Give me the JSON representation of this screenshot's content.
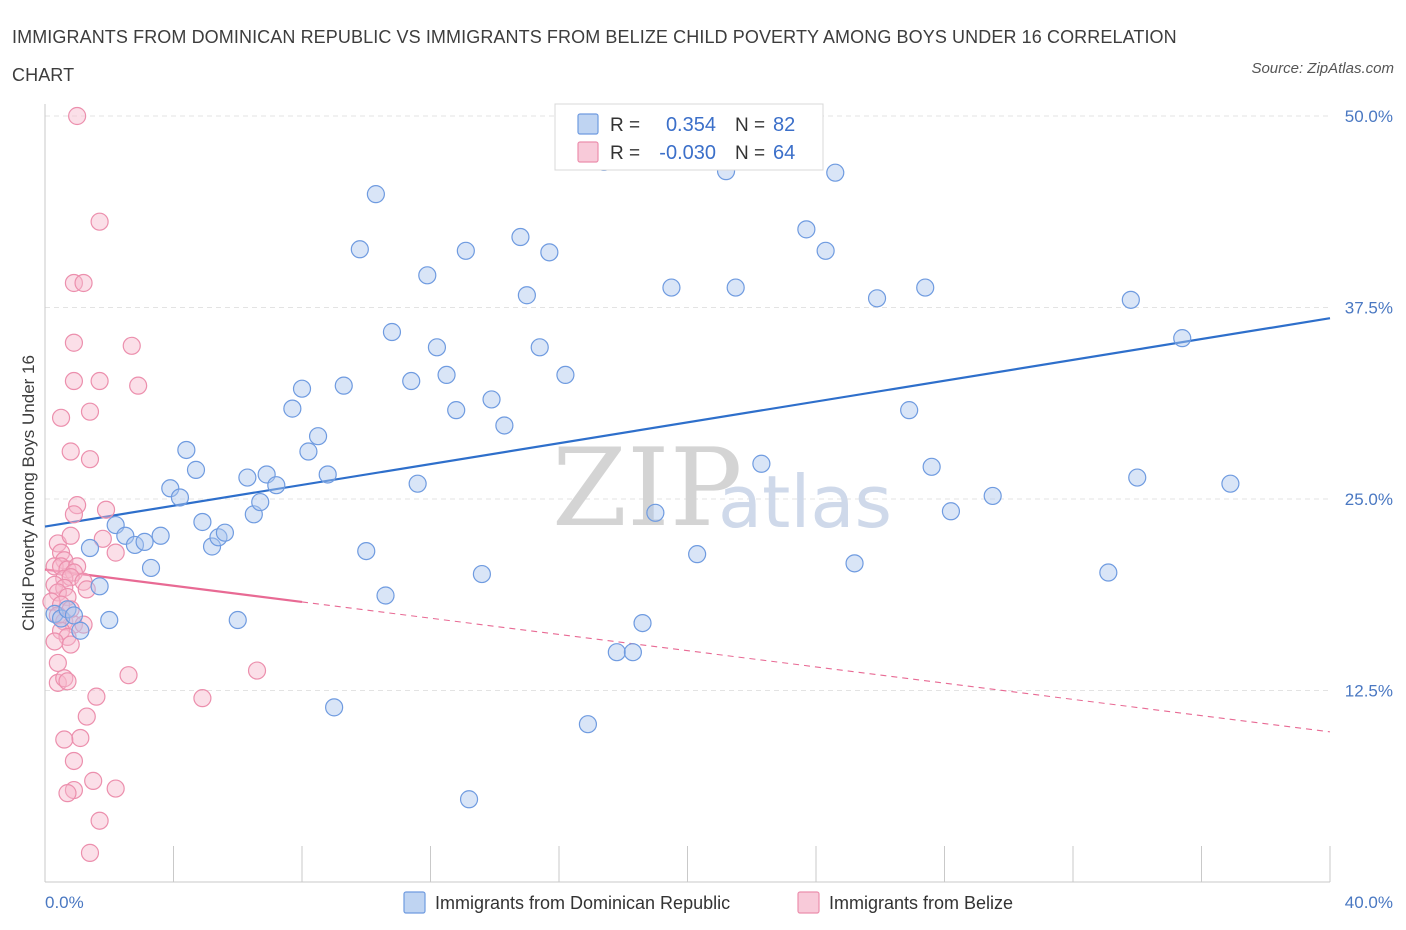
{
  "title": "IMMIGRANTS FROM DOMINICAN REPUBLIC VS IMMIGRANTS FROM BELIZE CHILD POVERTY AMONG BOYS UNDER 16 CORRELATION CHART",
  "source": "Source: ZipAtlas.com",
  "watermark": {
    "part1": "ZIP",
    "part2": "atlas"
  },
  "colors": {
    "blue_fill": "#aac6ee",
    "blue_stroke": "#6f9be0",
    "blue_line": "#2e6fcb",
    "pink_fill": "#f6b8cc",
    "pink_stroke": "#ec8fad",
    "pink_line": "#e86a94",
    "grid": "#e3e3e3",
    "axis_text": "#4a78c2"
  },
  "legend": {
    "r_label": "R =",
    "n_label": "N =",
    "rows": [
      {
        "series": "dominican",
        "r": "0.354",
        "n": "82"
      },
      {
        "series": "belize",
        "r": "-0.030",
        "n": "64"
      }
    ]
  },
  "bottom_legend": [
    {
      "series": "dominican",
      "label": "Immigrants from Dominican Republic"
    },
    {
      "series": "belize",
      "label": "Immigrants from Belize"
    }
  ],
  "chart_data": {
    "type": "scatter",
    "xlabel": "",
    "ylabel": "Child Poverty Among Boys Under 16",
    "xlim": [
      0,
      40
    ],
    "ylim": [
      0,
      50
    ],
    "x_tick_labels": [
      "0.0%",
      "40.0%"
    ],
    "y_ticks": [
      {
        "value": 12.5,
        "label": "12.5%"
      },
      {
        "value": 25.0,
        "label": "25.0%"
      },
      {
        "value": 37.5,
        "label": "37.5%"
      },
      {
        "value": 50.0,
        "label": "50.0%"
      }
    ],
    "series": [
      {
        "name": "Immigrants from Dominican Republic",
        "key": "dominican",
        "r": 0.354,
        "n": 82,
        "trend": {
          "x0": 0,
          "y0": 23.2,
          "x1": 40,
          "y1": 36.8,
          "dashed_from": null
        },
        "points": [
          [
            0.3,
            17.5
          ],
          [
            0.5,
            17.2
          ],
          [
            0.7,
            17.8
          ],
          [
            0.9,
            17.4
          ],
          [
            1.1,
            16.4
          ],
          [
            1.4,
            21.8
          ],
          [
            1.7,
            19.3
          ],
          [
            2.0,
            17.1
          ],
          [
            2.2,
            23.3
          ],
          [
            2.5,
            22.6
          ],
          [
            2.8,
            22.0
          ],
          [
            3.1,
            22.2
          ],
          [
            3.3,
            20.5
          ],
          [
            3.6,
            22.6
          ],
          [
            3.9,
            25.7
          ],
          [
            4.2,
            25.1
          ],
          [
            4.4,
            28.2
          ],
          [
            4.7,
            26.9
          ],
          [
            4.9,
            23.5
          ],
          [
            5.2,
            21.9
          ],
          [
            5.4,
            22.5
          ],
          [
            5.6,
            22.8
          ],
          [
            6.0,
            17.1
          ],
          [
            6.3,
            26.4
          ],
          [
            6.5,
            24.0
          ],
          [
            6.7,
            24.8
          ],
          [
            6.9,
            26.6
          ],
          [
            7.2,
            25.9
          ],
          [
            7.7,
            30.9
          ],
          [
            8.0,
            32.2
          ],
          [
            8.2,
            28.1
          ],
          [
            8.5,
            29.1
          ],
          [
            8.8,
            26.6
          ],
          [
            9.0,
            11.4
          ],
          [
            9.3,
            32.4
          ],
          [
            9.8,
            41.3
          ],
          [
            10.0,
            21.6
          ],
          [
            10.3,
            44.9
          ],
          [
            10.6,
            18.7
          ],
          [
            10.8,
            35.9
          ],
          [
            11.4,
            32.7
          ],
          [
            11.6,
            26.0
          ],
          [
            11.9,
            39.6
          ],
          [
            12.2,
            34.9
          ],
          [
            12.5,
            33.1
          ],
          [
            12.8,
            30.8
          ],
          [
            13.1,
            41.2
          ],
          [
            13.2,
            5.4
          ],
          [
            13.6,
            20.1
          ],
          [
            13.9,
            31.5
          ],
          [
            14.3,
            29.8
          ],
          [
            14.8,
            42.1
          ],
          [
            15.0,
            38.3
          ],
          [
            15.4,
            34.9
          ],
          [
            15.7,
            41.1
          ],
          [
            16.2,
            33.1
          ],
          [
            16.9,
            10.3
          ],
          [
            17.4,
            47.0
          ],
          [
            17.8,
            15.0
          ],
          [
            18.3,
            15.0
          ],
          [
            18.6,
            16.9
          ],
          [
            19.0,
            24.1
          ],
          [
            19.5,
            38.8
          ],
          [
            20.3,
            21.4
          ],
          [
            21.2,
            46.4
          ],
          [
            21.5,
            38.8
          ],
          [
            22.3,
            27.3
          ],
          [
            23.7,
            42.6
          ],
          [
            24.3,
            41.2
          ],
          [
            24.6,
            46.3
          ],
          [
            25.2,
            20.8
          ],
          [
            25.9,
            38.1
          ],
          [
            26.9,
            30.8
          ],
          [
            27.4,
            38.8
          ],
          [
            27.6,
            27.1
          ],
          [
            28.2,
            24.2
          ],
          [
            29.5,
            25.2
          ],
          [
            33.1,
            20.2
          ],
          [
            33.8,
            38.0
          ],
          [
            34.0,
            26.4
          ],
          [
            35.4,
            35.5
          ],
          [
            36.9,
            26.0
          ]
        ]
      },
      {
        "name": "Immigrants from Belize",
        "key": "belize",
        "r": -0.03,
        "n": 64,
        "trend": {
          "x0": 0,
          "y0": 20.4,
          "x1": 40,
          "y1": 9.8,
          "dashed_from": 8.0
        },
        "points": [
          [
            1.0,
            50.0
          ],
          [
            1.7,
            43.1
          ],
          [
            0.9,
            39.1
          ],
          [
            1.2,
            39.1
          ],
          [
            0.9,
            35.2
          ],
          [
            2.7,
            35.0
          ],
          [
            0.9,
            32.7
          ],
          [
            1.7,
            32.7
          ],
          [
            2.9,
            32.4
          ],
          [
            1.4,
            30.7
          ],
          [
            0.5,
            30.3
          ],
          [
            0.8,
            28.1
          ],
          [
            1.4,
            27.6
          ],
          [
            1.0,
            24.6
          ],
          [
            1.9,
            24.3
          ],
          [
            0.9,
            24.0
          ],
          [
            0.4,
            22.1
          ],
          [
            0.8,
            22.6
          ],
          [
            1.8,
            22.4
          ],
          [
            0.5,
            21.5
          ],
          [
            2.2,
            21.5
          ],
          [
            0.6,
            21.0
          ],
          [
            0.3,
            20.6
          ],
          [
            0.5,
            20.6
          ],
          [
            0.7,
            20.4
          ],
          [
            1.0,
            20.6
          ],
          [
            0.9,
            20.2
          ],
          [
            0.6,
            19.8
          ],
          [
            0.8,
            19.9
          ],
          [
            1.2,
            19.6
          ],
          [
            0.3,
            19.4
          ],
          [
            0.6,
            19.2
          ],
          [
            0.4,
            18.9
          ],
          [
            0.7,
            18.6
          ],
          [
            1.3,
            19.1
          ],
          [
            0.2,
            18.3
          ],
          [
            0.5,
            18.1
          ],
          [
            0.8,
            17.8
          ],
          [
            0.4,
            17.4
          ],
          [
            0.6,
            17.0
          ],
          [
            0.9,
            16.8
          ],
          [
            0.5,
            16.4
          ],
          [
            0.7,
            16.0
          ],
          [
            1.2,
            16.8
          ],
          [
            0.3,
            15.7
          ],
          [
            0.8,
            15.5
          ],
          [
            0.4,
            13.0
          ],
          [
            0.6,
            13.3
          ],
          [
            0.7,
            13.1
          ],
          [
            2.6,
            13.5
          ],
          [
            1.6,
            12.1
          ],
          [
            1.3,
            10.8
          ],
          [
            1.1,
            9.4
          ],
          [
            0.6,
            9.3
          ],
          [
            0.9,
            7.9
          ],
          [
            0.9,
            6.0
          ],
          [
            1.5,
            6.6
          ],
          [
            2.2,
            6.1
          ],
          [
            0.7,
            5.8
          ],
          [
            1.7,
            4.0
          ],
          [
            1.4,
            1.9
          ],
          [
            4.9,
            12.0
          ],
          [
            6.6,
            13.8
          ],
          [
            0.4,
            14.3
          ]
        ]
      }
    ]
  }
}
